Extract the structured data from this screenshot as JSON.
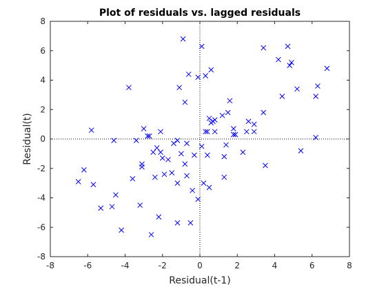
{
  "chart_data": {
    "type": "scatter",
    "title": "Plot of residuals vs. lagged residuals",
    "xlabel": "Residual(t-1)",
    "ylabel": "Residual(t)",
    "xlim": [
      -8,
      8
    ],
    "ylim": [
      -8,
      8
    ],
    "xticks": [
      -8,
      -6,
      -4,
      -2,
      0,
      2,
      4,
      6,
      8
    ],
    "yticks": [
      -8,
      -6,
      -4,
      -2,
      0,
      2,
      4,
      6,
      8
    ],
    "grid": false,
    "reference_lines": {
      "x": 0,
      "y": 0,
      "style": "dotted"
    },
    "marker": "x",
    "colors": {
      "marker": "#0000ff",
      "axis": "#262626",
      "reference": "#000000"
    },
    "series": [
      {
        "points": [
          [
            -6.5,
            -2.9
          ],
          [
            -6.2,
            -2.1
          ],
          [
            -5.8,
            0.6
          ],
          [
            -5.7,
            -3.1
          ],
          [
            -5.3,
            -4.7
          ],
          [
            -4.7,
            -4.6
          ],
          [
            -4.6,
            -0.1
          ],
          [
            -4.5,
            -3.8
          ],
          [
            -4.2,
            -6.2
          ],
          [
            -3.8,
            3.5
          ],
          [
            -3.6,
            -2.7
          ],
          [
            -3.4,
            -0.1
          ],
          [
            -3.2,
            -4.5
          ],
          [
            -3.1,
            -1.7
          ],
          [
            -3.1,
            -1.9
          ],
          [
            -3.0,
            0.7
          ],
          [
            -2.8,
            0.2
          ],
          [
            -2.7,
            0.2
          ],
          [
            -2.6,
            -6.5
          ],
          [
            -2.5,
            -0.9
          ],
          [
            -2.4,
            -2.6
          ],
          [
            -2.3,
            -0.6
          ],
          [
            -2.2,
            -5.3
          ],
          [
            -2.1,
            -0.9
          ],
          [
            -2.1,
            0.5
          ],
          [
            -2.0,
            -1.3
          ],
          [
            -1.9,
            -2.4
          ],
          [
            -1.7,
            -1.4
          ],
          [
            -1.5,
            -2.3
          ],
          [
            -1.4,
            -0.3
          ],
          [
            -1.2,
            -0.1
          ],
          [
            -1.2,
            -5.7
          ],
          [
            -1.2,
            -3.0
          ],
          [
            -1.1,
            3.5
          ],
          [
            -1.0,
            -1.0
          ],
          [
            -0.9,
            6.8
          ],
          [
            -0.8,
            2.5
          ],
          [
            -0.8,
            -1.7
          ],
          [
            -0.7,
            -2.5
          ],
          [
            -0.7,
            -0.3
          ],
          [
            -0.6,
            4.4
          ],
          [
            -0.5,
            -5.7
          ],
          [
            -0.4,
            -3.5
          ],
          [
            -0.3,
            -1.1
          ],
          [
            -0.1,
            -4.1
          ],
          [
            -0.1,
            4.2
          ],
          [
            0.1,
            6.3
          ],
          [
            0.1,
            -0.5
          ],
          [
            0.2,
            -3.0
          ],
          [
            0.3,
            4.3
          ],
          [
            0.3,
            0.5
          ],
          [
            0.4,
            0.5
          ],
          [
            0.4,
            -1.1
          ],
          [
            0.5,
            1.4
          ],
          [
            0.5,
            -3.3
          ],
          [
            0.6,
            1.1
          ],
          [
            0.6,
            4.7
          ],
          [
            0.7,
            1.2
          ],
          [
            0.8,
            1.3
          ],
          [
            0.8,
            0.5
          ],
          [
            1.2,
            1.6
          ],
          [
            1.3,
            -2.6
          ],
          [
            1.3,
            -1.2
          ],
          [
            1.4,
            -0.4
          ],
          [
            1.5,
            1.8
          ],
          [
            1.6,
            2.6
          ],
          [
            1.8,
            0.3
          ],
          [
            1.8,
            0.7
          ],
          [
            1.9,
            0.3
          ],
          [
            2.3,
            -0.9
          ],
          [
            2.5,
            0.5
          ],
          [
            2.6,
            1.2
          ],
          [
            2.9,
            0.5
          ],
          [
            2.9,
            1.0
          ],
          [
            3.4,
            6.2
          ],
          [
            3.4,
            1.8
          ],
          [
            3.5,
            -1.8
          ],
          [
            4.2,
            5.4
          ],
          [
            4.4,
            2.9
          ],
          [
            4.7,
            6.3
          ],
          [
            4.8,
            5.0
          ],
          [
            4.9,
            5.2
          ],
          [
            5.2,
            3.4
          ],
          [
            5.4,
            -0.8
          ],
          [
            6.2,
            0.1
          ],
          [
            6.2,
            2.9
          ],
          [
            6.3,
            3.6
          ],
          [
            6.8,
            4.8
          ]
        ]
      }
    ]
  }
}
